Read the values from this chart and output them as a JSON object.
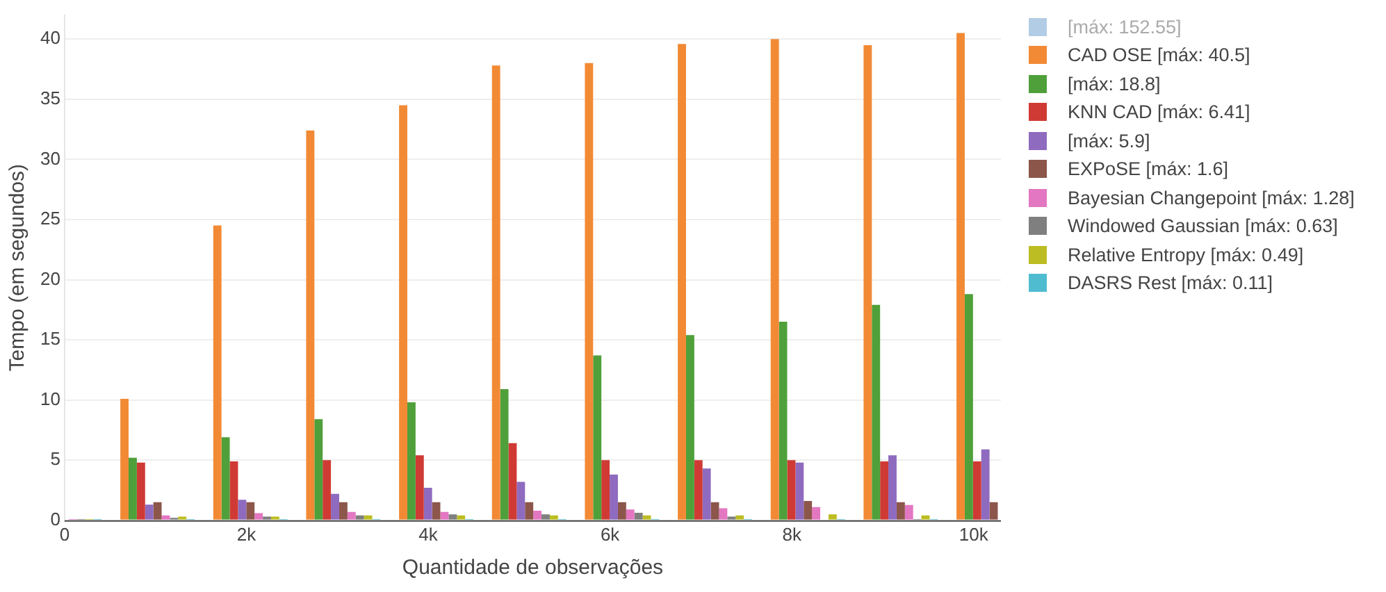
{
  "chart_data": {
    "type": "bar",
    "xlabel": "Quantidade de observações",
    "ylabel": "Tempo (em segundos)",
    "x": [
      0,
      1022,
      2044,
      3066,
      4088,
      5110,
      6132,
      7154,
      8176,
      9198,
      10220
    ],
    "xlim": [
      0,
      10300
    ],
    "xticks": [
      0,
      {
        "value": 2000,
        "label": "2k"
      },
      {
        "value": 4000,
        "label": "4k"
      },
      {
        "value": 6000,
        "label": "6k"
      },
      {
        "value": 8000,
        "label": "8k"
      },
      {
        "value": 10000,
        "label": "10k"
      }
    ],
    "ylim": [
      0,
      42
    ],
    "yticks": [
      0,
      5,
      10,
      15,
      20,
      25,
      30,
      35,
      40
    ],
    "grid": "y",
    "legend": "right",
    "series": [
      {
        "name": "[máx: 152.55]",
        "color": "#9fbfdf",
        "values": [
          null,
          null,
          null,
          null,
          null,
          null,
          null,
          null,
          null,
          null,
          null
        ]
      },
      {
        "name": "CAD OSE [máx: 40.5]",
        "color": "#f28a35",
        "values": [
          null,
          10.1,
          24.5,
          32.4,
          34.5,
          37.8,
          38.0,
          39.6,
          40.0,
          39.5,
          40.5
        ]
      },
      {
        "name": "[máx: 18.8]",
        "color": "#4fa03a",
        "values": [
          null,
          5.2,
          6.9,
          8.4,
          9.8,
          10.9,
          13.7,
          15.4,
          16.5,
          17.9,
          18.8
        ]
      },
      {
        "name": "KNN CAD [máx: 6.41]",
        "color": "#d03a34",
        "values": [
          null,
          4.8,
          4.9,
          5.0,
          5.4,
          6.41,
          5.0,
          5.0,
          5.0,
          4.9,
          4.9
        ]
      },
      {
        "name": "[máx: 5.9]",
        "color": "#8e6bbf",
        "values": [
          null,
          1.3,
          1.7,
          2.2,
          2.7,
          3.2,
          3.8,
          4.3,
          4.8,
          5.4,
          5.9
        ]
      },
      {
        "name": "EXPoSE [máx: 1.6]",
        "color": "#8c564b",
        "values": [
          null,
          1.5,
          1.5,
          1.5,
          1.5,
          1.5,
          1.5,
          1.5,
          1.6,
          1.5,
          1.5
        ]
      },
      {
        "name": "Bayesian Changepoint [máx: 1.28]",
        "color": "#e377c2",
        "values": [
          0.1,
          0.4,
          0.6,
          0.7,
          0.7,
          0.8,
          0.9,
          1.0,
          1.1,
          1.28,
          null
        ]
      },
      {
        "name": "Windowed Gaussian [máx: 0.63]",
        "color": "#7f7f7f",
        "values": [
          0.1,
          0.2,
          0.3,
          0.4,
          0.5,
          0.5,
          0.63,
          0.3,
          0.0,
          0.1,
          null
        ]
      },
      {
        "name": "Relative Entropy [máx: 0.49]",
        "color": "#bcbd22",
        "values": [
          0.1,
          0.3,
          0.3,
          0.4,
          0.4,
          0.4,
          0.4,
          0.4,
          0.49,
          0.4,
          null
        ]
      },
      {
        "name": "DASRS Rest [máx: 0.11]",
        "color": "#4fbcd0",
        "values": [
          0.1,
          0.1,
          0.1,
          0.1,
          0.1,
          0.11,
          0.1,
          0.1,
          0.1,
          0.1,
          null
        ]
      }
    ]
  }
}
